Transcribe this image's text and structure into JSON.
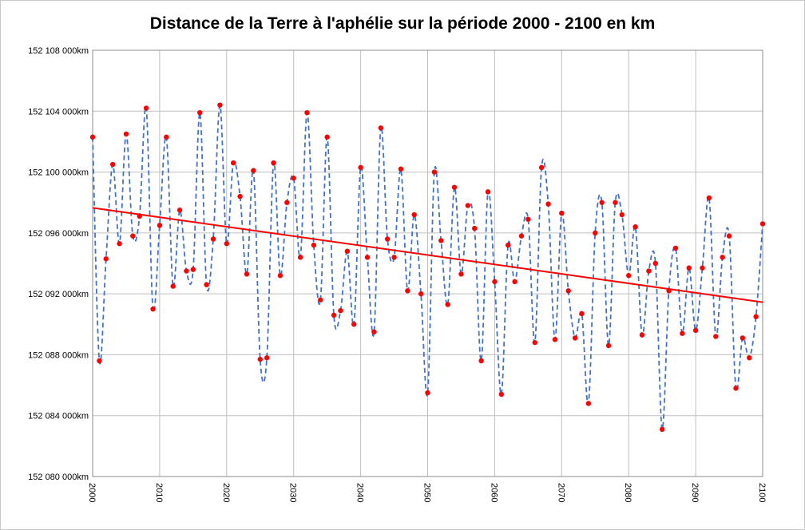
{
  "chart_data": {
    "type": "scatter",
    "title": "Distance de la Terre à l'aphélie sur la période 2000 - 2100 en km",
    "xlabel": "",
    "ylabel": "",
    "xlim": [
      2000,
      2100
    ],
    "ylim": [
      152080000,
      152108000
    ],
    "x_ticks": [
      2000,
      2010,
      2020,
      2030,
      2040,
      2050,
      2060,
      2070,
      2080,
      2090,
      2100
    ],
    "x_tick_labels": [
      "2000",
      "2010",
      "2020",
      "2030",
      "2040",
      "2050",
      "2060",
      "2070",
      "2080",
      "2090",
      "2100"
    ],
    "y_ticks": [
      152080000,
      152084000,
      152088000,
      152092000,
      152096000,
      152100000,
      152104000,
      152108000
    ],
    "y_tick_labels": [
      "152 080 000km",
      "152 084 000km",
      "152 088 000km",
      "152 092 000km",
      "152 096 000km",
      "152 100 000km",
      "152 104 000km",
      "152 108 000km"
    ],
    "grid": true,
    "colors": {
      "points": "#ff0000",
      "dashed_line": "#4472c4",
      "trend": "#ff0000",
      "grid": "#bfbfbf"
    },
    "series": [
      {
        "style": "points-with-dashed-smooth-line",
        "x": [
          2000,
          2001,
          2002,
          2003,
          2004,
          2005,
          2006,
          2007,
          2008,
          2009,
          2010,
          2011,
          2012,
          2013,
          2014,
          2015,
          2016,
          2017,
          2018,
          2019,
          2020,
          2021,
          2022,
          2023,
          2024,
          2025,
          2026,
          2027,
          2028,
          2029,
          2030,
          2031,
          2032,
          2033,
          2034,
          2035,
          2036,
          2037,
          2038,
          2039,
          2040,
          2041,
          2042,
          2043,
          2044,
          2045,
          2046,
          2047,
          2048,
          2049,
          2050,
          2051,
          2052,
          2053,
          2054,
          2055,
          2056,
          2057,
          2058,
          2059,
          2060,
          2061,
          2062,
          2063,
          2064,
          2065,
          2066,
          2067,
          2068,
          2069,
          2070,
          2071,
          2072,
          2073,
          2074,
          2075,
          2076,
          2077,
          2078,
          2079,
          2080,
          2081,
          2082,
          2083,
          2084,
          2085,
          2086,
          2087,
          2088,
          2089,
          2090,
          2091,
          2092,
          2093,
          2094,
          2095,
          2096,
          2097,
          2098,
          2099,
          2100
        ],
        "y": [
          152102300,
          152087600,
          152094300,
          152100500,
          152095300,
          152102500,
          152095800,
          152097100,
          152104200,
          152091000,
          152096500,
          152102300,
          152092500,
          152097500,
          152093500,
          152093600,
          152103900,
          152092600,
          152095600,
          152104400,
          152095300,
          152100600,
          152098400,
          152093300,
          152100100,
          152087700,
          152087800,
          152100600,
          152093200,
          152098000,
          152099600,
          152094400,
          152103900,
          152095200,
          152091600,
          152102300,
          152090600,
          152090900,
          152094800,
          152090000,
          152100300,
          152094400,
          152089500,
          152102900,
          152095600,
          152094400,
          152100200,
          152092200,
          152097200,
          152092000,
          152085500,
          152100000,
          152095500,
          152091300,
          152099000,
          152093300,
          152097800,
          152096300,
          152087600,
          152098700,
          152092800,
          152085400,
          152095200,
          152092800,
          152095800,
          152096900,
          152088800,
          152100300,
          152097900,
          152089000,
          152097300,
          152092200,
          152089100,
          152090700,
          152084800,
          152096000,
          152098000,
          152088600,
          152098000,
          152097200,
          152093200,
          152096400,
          152089300,
          152093500,
          152094000,
          152083100,
          152092200,
          152095000,
          152089400,
          152093700,
          152089600,
          152093700,
          152098300,
          152089200,
          152094400,
          152095800,
          152085800,
          152089100,
          152087800,
          152090500,
          152096600
        ]
      },
      {
        "style": "linear-trend",
        "x": [
          2000,
          2100
        ],
        "y": [
          152097650,
          152091450
        ]
      }
    ]
  }
}
